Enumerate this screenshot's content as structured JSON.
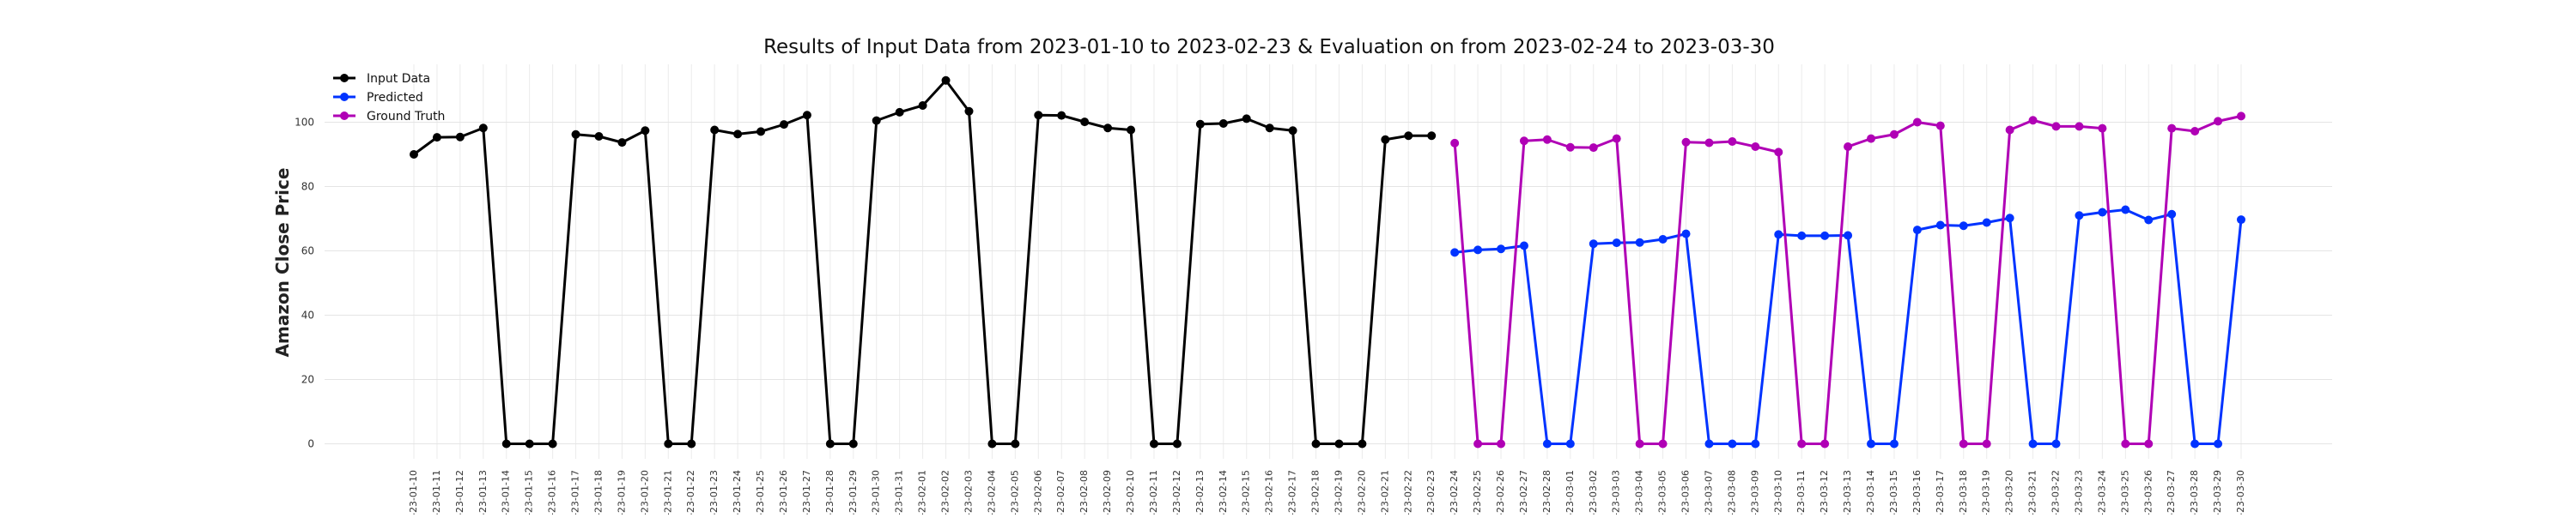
{
  "chart_data": {
    "type": "line",
    "title": "Results of Input Data from 2023-01-10 to 2023-02-23 & Evaluation on from 2023-02-24 to 2023-03-30",
    "xlabel": "",
    "ylabel": "Amazon Close Price",
    "ylim": [
      -5,
      117
    ],
    "yticks": [
      0,
      20,
      40,
      60,
      80,
      100
    ],
    "grid": true,
    "legend_position": "top-left",
    "x": [
      "2023-01-10",
      "2023-01-11",
      "2023-01-12",
      "2023-01-13",
      "2023-01-14",
      "2023-01-15",
      "2023-01-16",
      "2023-01-17",
      "2023-01-18",
      "2023-01-19",
      "2023-01-20",
      "2023-01-21",
      "2023-01-22",
      "2023-01-23",
      "2023-01-24",
      "2023-01-25",
      "2023-01-26",
      "2023-01-27",
      "2023-01-28",
      "2023-01-29",
      "2023-01-30",
      "2023-01-31",
      "2023-02-01",
      "2023-02-02",
      "2023-02-03",
      "2023-02-04",
      "2023-02-05",
      "2023-02-06",
      "2023-02-07",
      "2023-02-08",
      "2023-02-09",
      "2023-02-10",
      "2023-02-11",
      "2023-02-12",
      "2023-02-13",
      "2023-02-14",
      "2023-02-15",
      "2023-02-16",
      "2023-02-17",
      "2023-02-18",
      "2023-02-19",
      "2023-02-20",
      "2023-02-21",
      "2023-02-22",
      "2023-02-23",
      "2023-02-24",
      "2023-02-25",
      "2023-02-26",
      "2023-02-27",
      "2023-02-28",
      "2023-03-01",
      "2023-03-02",
      "2023-03-03",
      "2023-03-04",
      "2023-03-05",
      "2023-03-06",
      "2023-03-07",
      "2023-03-08",
      "2023-03-09",
      "2023-03-10",
      "2023-03-11",
      "2023-03-12",
      "2023-03-13",
      "2023-03-14",
      "2023-03-15",
      "2023-03-16",
      "2023-03-17",
      "2023-03-18",
      "2023-03-19",
      "2023-03-20",
      "2023-03-21",
      "2023-03-22",
      "2023-03-23",
      "2023-03-24",
      "2023-03-25",
      "2023-03-26",
      "2023-03-27",
      "2023-03-28",
      "2023-03-29",
      "2023-03-30"
    ],
    "x_tick_labels": [
      "-23-01-10",
      "-23-01-11",
      "-23-01-12",
      "-23-01-13",
      "-23-01-14",
      "-23-01-15",
      "-23-01-16",
      "-23-01-17",
      "-23-01-18",
      "-23-01-19",
      "-23-01-20",
      "-23-01-21",
      "-23-01-22",
      "-23-01-23",
      "-23-01-24",
      "-23-01-25",
      "-23-01-26",
      "-23-01-27",
      "-23-01-28",
      "-23-01-29",
      "-23-01-30",
      "-23-01-31",
      "-23-02-01",
      "-23-02-02",
      "-23-02-03",
      "-23-02-04",
      "-23-02-05",
      "-23-02-06",
      "-23-02-07",
      "-23-02-08",
      "-23-02-09",
      "-23-02-10",
      "-23-02-11",
      "-23-02-12",
      "-23-02-13",
      "-23-02-14",
      "-23-02-15",
      "-23-02-16",
      "-23-02-17",
      "-23-02-18",
      "-23-02-19",
      "-23-02-20",
      "-23-02-21",
      "-23-02-22",
      "-23-02-23",
      "-23-02-24",
      "-23-02-25",
      "-23-02-26",
      "-23-02-27",
      "-23-02-28",
      "-23-03-01",
      "-23-03-02",
      "-23-03-03",
      "-23-03-04",
      "-23-03-05",
      "-23-03-06",
      "-23-03-07",
      "-23-03-08",
      "-23-03-09",
      "-23-03-10",
      "-23-03-11",
      "-23-03-12",
      "-23-03-13",
      "-23-03-14",
      "-23-03-15",
      "-23-03-16",
      "-23-03-17",
      "-23-03-18",
      "-23-03-19",
      "-23-03-20",
      "-23-03-21",
      "-23-03-22",
      "-23-03-23",
      "-23-03-24",
      "-23-03-25",
      "-23-03-26",
      "-23-03-27",
      "-23-03-28",
      "-23-03-29",
      "-23-03-30"
    ],
    "series": [
      {
        "name": "Input Data",
        "color": "#000000",
        "x": [
          "2023-01-10",
          "2023-01-11",
          "2023-01-12",
          "2023-01-13",
          "2023-01-14",
          "2023-01-15",
          "2023-01-16",
          "2023-01-17",
          "2023-01-18",
          "2023-01-19",
          "2023-01-20",
          "2023-01-21",
          "2023-01-22",
          "2023-01-23",
          "2023-01-24",
          "2023-01-25",
          "2023-01-26",
          "2023-01-27",
          "2023-01-28",
          "2023-01-29",
          "2023-01-30",
          "2023-01-31",
          "2023-02-01",
          "2023-02-02",
          "2023-02-03",
          "2023-02-04",
          "2023-02-05",
          "2023-02-06",
          "2023-02-07",
          "2023-02-08",
          "2023-02-09",
          "2023-02-10",
          "2023-02-11",
          "2023-02-12",
          "2023-02-13",
          "2023-02-14",
          "2023-02-15",
          "2023-02-16",
          "2023-02-17",
          "2023-02-18",
          "2023-02-19",
          "2023-02-20",
          "2023-02-21",
          "2023-02-22",
          "2023-02-23"
        ],
        "values": [
          90,
          95.3,
          95.4,
          98.2,
          0,
          0,
          0,
          96.2,
          95.6,
          93.7,
          97.4,
          0,
          0,
          97.6,
          96.3,
          97.1,
          99.3,
          102.2,
          0,
          0,
          100.5,
          103.1,
          105.2,
          113,
          103.4,
          0,
          0,
          102.2,
          102.1,
          100.1,
          98.2,
          97.6,
          0,
          0,
          99.4,
          99.6,
          101.1,
          98.2,
          97.4,
          0,
          0,
          0,
          94.6,
          95.8,
          95.8
        ]
      },
      {
        "name": "Predicted",
        "color": "#0033ff",
        "x": [
          "2023-02-24",
          "2023-02-25",
          "2023-02-26",
          "2023-02-27",
          "2023-02-28",
          "2023-03-01",
          "2023-03-02",
          "2023-03-03",
          "2023-03-04",
          "2023-03-05",
          "2023-03-06",
          "2023-03-07",
          "2023-03-08",
          "2023-03-09",
          "2023-03-10",
          "2023-03-11",
          "2023-03-12",
          "2023-03-13",
          "2023-03-14",
          "2023-03-15",
          "2023-03-16",
          "2023-03-17",
          "2023-03-18",
          "2023-03-19",
          "2023-03-20",
          "2023-03-21",
          "2023-03-22",
          "2023-03-23",
          "2023-03-24",
          "2023-03-25",
          "2023-03-26",
          "2023-03-27",
          "2023-03-28",
          "2023-03-29",
          "2023-03-30"
        ],
        "values": [
          59.5,
          60.3,
          60.6,
          61.6,
          0,
          0,
          62.2,
          62.5,
          62.6,
          63.6,
          65.3,
          0,
          0,
          0,
          65.1,
          64.7,
          64.7,
          64.8,
          0,
          0,
          66.5,
          68,
          67.8,
          68.8,
          70.2,
          0,
          0,
          71,
          72,
          72.8,
          69.6,
          71.4,
          0,
          0,
          69.7
        ]
      },
      {
        "name": "Ground Truth",
        "color": "#b000b5",
        "x": [
          "2023-02-24",
          "2023-02-25",
          "2023-02-26",
          "2023-02-27",
          "2023-02-28",
          "2023-03-01",
          "2023-03-02",
          "2023-03-03",
          "2023-03-04",
          "2023-03-05",
          "2023-03-06",
          "2023-03-07",
          "2023-03-08",
          "2023-03-09",
          "2023-03-10",
          "2023-03-11",
          "2023-03-12",
          "2023-03-13",
          "2023-03-14",
          "2023-03-15",
          "2023-03-16",
          "2023-03-17",
          "2023-03-18",
          "2023-03-19",
          "2023-03-20",
          "2023-03-21",
          "2023-03-22",
          "2023-03-23",
          "2023-03-24",
          "2023-03-25",
          "2023-03-26",
          "2023-03-27",
          "2023-03-28",
          "2023-03-29",
          "2023-03-30"
        ],
        "values": [
          93.5,
          0,
          0,
          94.2,
          94.6,
          92.2,
          92.1,
          94.9,
          0,
          0,
          93.8,
          93.6,
          94,
          92.4,
          90.7,
          0,
          0,
          92.4,
          94.9,
          96.2,
          100,
          98.9,
          0,
          0,
          97.6,
          100.6,
          98.7,
          98.7,
          98.1,
          0,
          0,
          98.1,
          97.2,
          100.3,
          101.9
        ]
      }
    ]
  }
}
